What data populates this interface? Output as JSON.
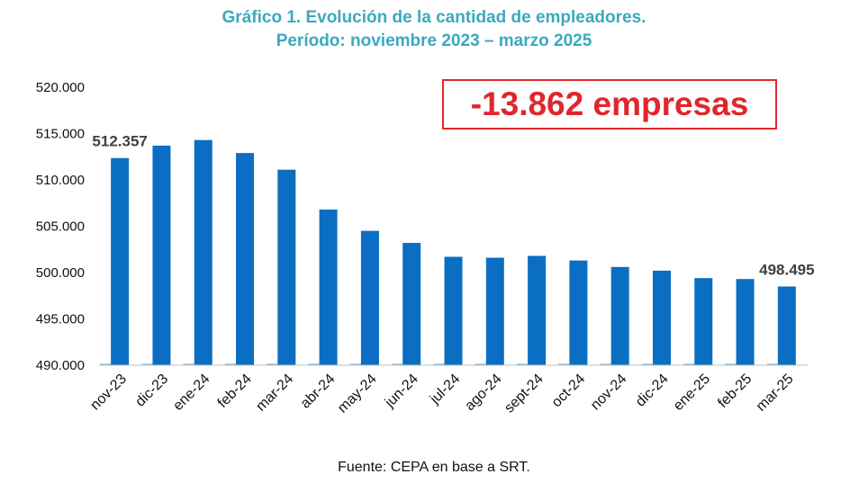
{
  "colors": {
    "title": "#3BA9BF",
    "bar": "#0A6FC2",
    "callout": "#E0262B",
    "axis": "#BFBFBF",
    "text": "#111111",
    "value_label": "#404040"
  },
  "chart_data": {
    "type": "bar",
    "title": "Gráfico 1. Evolución de la cantidad de empleadores.",
    "subtitle": "Período: noviembre 2023 – marzo 2025",
    "xlabel": "",
    "ylabel": "",
    "categories": [
      "nov-23",
      "dic-23",
      "ene-24",
      "feb-24",
      "mar-24",
      "abr-24",
      "may-24",
      "jun-24",
      "jul-24",
      "ago-24",
      "sept-24",
      "oct-24",
      "nov-24",
      "dic-24",
      "ene-25",
      "feb-25",
      "mar-25"
    ],
    "values": [
      512357,
      513700,
      514300,
      512900,
      511100,
      506800,
      504500,
      503200,
      501700,
      501600,
      501800,
      501300,
      500600,
      500200,
      499400,
      499300,
      498495
    ],
    "ylim": [
      490000,
      520000
    ],
    "yticks": [
      490000,
      495000,
      500000,
      505000,
      510000,
      515000,
      520000
    ],
    "ytick_labels": [
      "490.000",
      "495.000",
      "500.000",
      "505.000",
      "510.000",
      "515.000",
      "520.000"
    ],
    "data_labels": [
      {
        "category": "nov-23",
        "text": "512.357"
      },
      {
        "category": "mar-25",
        "text": "498.495"
      }
    ],
    "grid": false,
    "legend": "none"
  },
  "callout": {
    "text": "-13.862 empresas"
  },
  "source": "Fuente: CEPA en base a SRT."
}
